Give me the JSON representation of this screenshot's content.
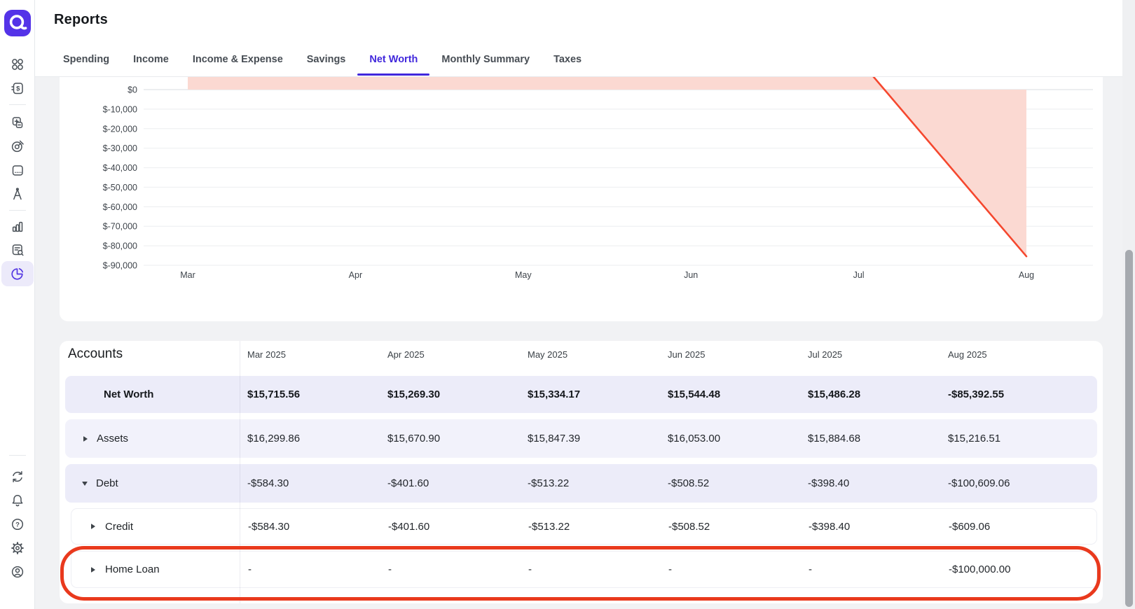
{
  "header": {
    "title": "Reports"
  },
  "tabs": {
    "items": [
      "Spending",
      "Income",
      "Income & Expense",
      "Savings",
      "Net Worth",
      "Monthly Summary",
      "Taxes"
    ],
    "active": "Net Worth"
  },
  "sidebar": {
    "logo_icon": "q-logo-icon",
    "top_icons": [
      "dashboard-icon",
      "transactions-icon",
      "accounts-icon",
      "goals-icon",
      "calendar-icon",
      "planning-icon",
      "investments-icon",
      "review-icon",
      "reports-pie-icon"
    ],
    "bottom_icons": [
      "sync-icon",
      "notifications-icon",
      "help-icon",
      "settings-icon",
      "profile-icon"
    ],
    "active_icon": "reports-pie-icon"
  },
  "chart_data": {
    "type": "area",
    "x": [
      "Mar",
      "Apr",
      "May",
      "Jun",
      "Jul",
      "Aug"
    ],
    "series": [
      {
        "name": "Net Worth",
        "values": [
          15715.56,
          15269.3,
          15334.17,
          15544.48,
          15486.28,
          -85392.55
        ]
      }
    ],
    "baseline": 0,
    "grid": true,
    "visible_tick_range": [
      0,
      -90000
    ],
    "y_ticks": [
      {
        "value": 0,
        "label": "$0"
      },
      {
        "value": -10000,
        "label": "$-10,000"
      },
      {
        "value": -20000,
        "label": "$-20,000"
      },
      {
        "value": -30000,
        "label": "$-30,000"
      },
      {
        "value": -40000,
        "label": "$-40,000"
      },
      {
        "value": -50000,
        "label": "$-50,000"
      },
      {
        "value": -60000,
        "label": "$-60,000"
      },
      {
        "value": -70000,
        "label": "$-70,000"
      },
      {
        "value": -80000,
        "label": "$-80,000"
      },
      {
        "value": -90000,
        "label": "$-90,000"
      }
    ],
    "line_color": "#F5472E",
    "fill_color": "#FBD9D2"
  },
  "accounts_table": {
    "title": "Accounts",
    "columns": [
      "Mar 2025",
      "Apr 2025",
      "May 2025",
      "Jun 2025",
      "Jul 2025",
      "Aug 2025"
    ],
    "rows": [
      {
        "label": "Net Worth",
        "level": 0,
        "caret": "none",
        "emphasis": true,
        "values": [
          "$15,715.56",
          "$15,269.30",
          "$15,334.17",
          "$15,544.48",
          "$15,486.28",
          "-$85,392.55"
        ]
      },
      {
        "label": "Assets",
        "level": 0,
        "caret": "collapsed",
        "values": [
          "$16,299.86",
          "$15,670.90",
          "$15,847.39",
          "$16,053.00",
          "$15,884.68",
          "$15,216.51"
        ]
      },
      {
        "label": "Debt",
        "level": 0,
        "caret": "expanded",
        "values": [
          "-$584.30",
          "-$401.60",
          "-$513.22",
          "-$508.52",
          "-$398.40",
          "-$100,609.06"
        ]
      },
      {
        "label": "Credit",
        "level": 1,
        "caret": "collapsed",
        "values": [
          "-$584.30",
          "-$401.60",
          "-$513.22",
          "-$508.52",
          "-$398.40",
          "-$609.06"
        ]
      },
      {
        "label": "Home Loan",
        "level": 1,
        "caret": "collapsed",
        "highlighted": true,
        "values": [
          "-",
          "-",
          "-",
          "-",
          "-",
          "-$100,000.00"
        ]
      }
    ]
  },
  "annotation": {
    "shape": "hand-drawn-rounded-circle",
    "target": "Home Loan row",
    "color": "#E9391D"
  },
  "colors": {
    "accent_purple": "#4128DC",
    "logo_purple": "#5433E8",
    "page_bg": "#F1F2F4",
    "row_lavender": "#ECECF9",
    "row_lavender_light": "#F2F2FB",
    "chart_line": "#F5472E",
    "chart_fill": "#FBD9D2",
    "annotation_red": "#E9391D"
  }
}
